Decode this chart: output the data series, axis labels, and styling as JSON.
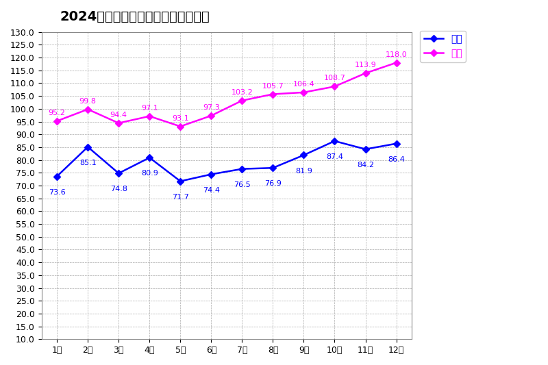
{
  "title": "2024年　淡路家畜市場　和子牛市場",
  "months": [
    "1月",
    "2月",
    "3月",
    "4月",
    "5月",
    "6月",
    "7月",
    "8月",
    "9月",
    "10月",
    "11月",
    "12月"
  ],
  "mesu": [
    73.6,
    85.1,
    74.8,
    80.9,
    71.7,
    74.4,
    76.5,
    76.9,
    81.9,
    87.4,
    84.2,
    86.4
  ],
  "kyosei": [
    95.2,
    99.8,
    94.4,
    97.1,
    93.1,
    97.3,
    103.2,
    105.7,
    106.4,
    108.7,
    113.9,
    118.0
  ],
  "mesu_color": "#0000FF",
  "kyosei_color": "#FF00FF",
  "mesu_label": "メス",
  "kyosei_label": "去勢",
  "ylim_min": 10.0,
  "ylim_max": 130.0,
  "ytick_step": 5.0,
  "bg_color": "#FFFFFF",
  "plot_bg_color": "#FFFFFF",
  "grid_color": "#AAAAAA",
  "title_fontsize": 14,
  "tick_fontsize": 9,
  "annotation_fontsize": 8,
  "legend_fontsize": 10
}
